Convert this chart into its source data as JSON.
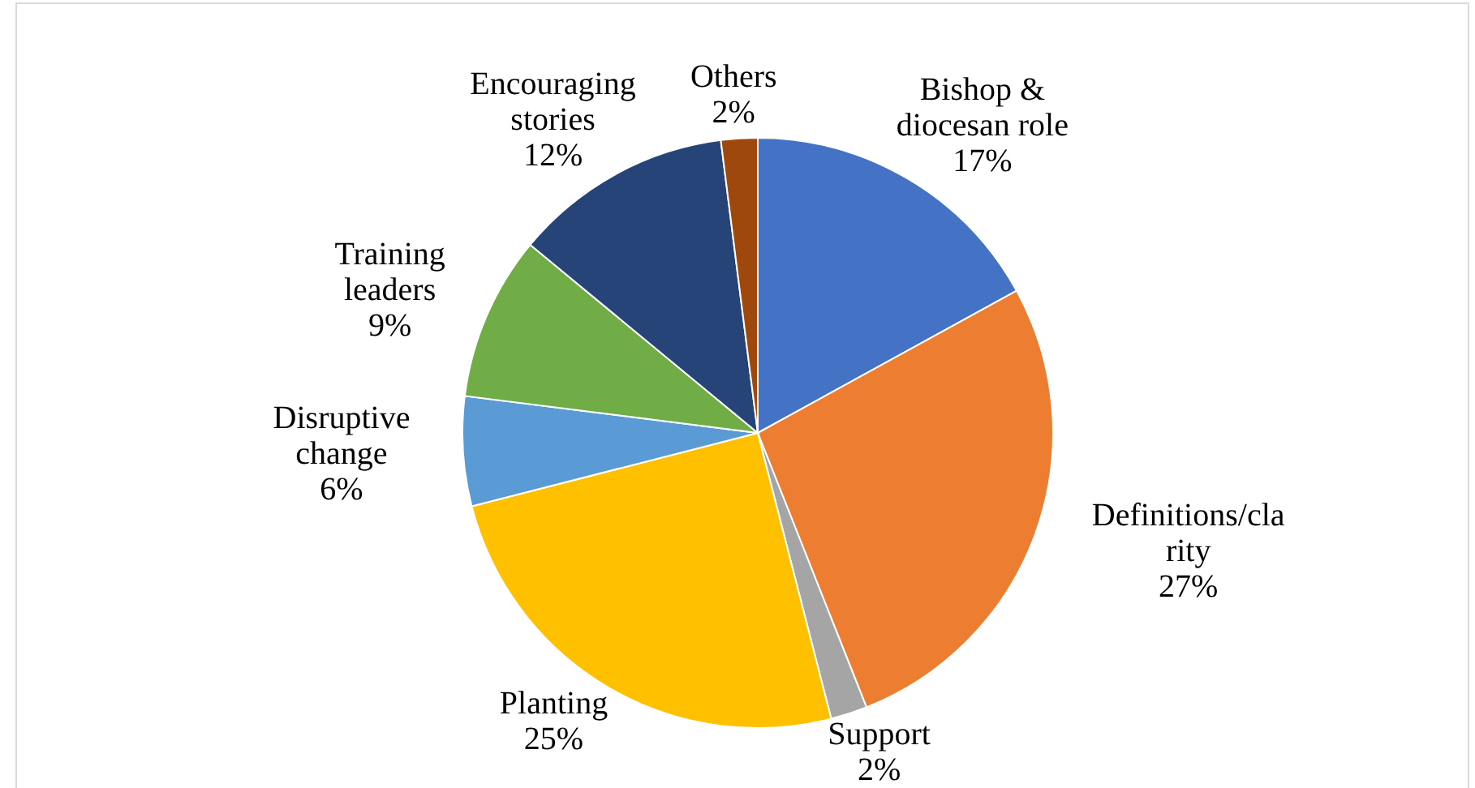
{
  "chart_data": {
    "type": "pie",
    "categories": [
      "Bishop &\ndiocesan role",
      "Definitions/cla\nrity",
      "Support",
      "Planting",
      "Disruptive\nchange",
      "Training\nleaders",
      "Encouraging\nstories",
      "Others"
    ],
    "values": [
      17,
      27,
      2,
      25,
      6,
      9,
      12,
      2
    ],
    "colors": [
      "#4472c4",
      "#ed7d31",
      "#a5a5a5",
      "#ffc000",
      "#5b9bd5",
      "#70ad47",
      "#264478",
      "#9e480e"
    ],
    "value_labels": [
      "17%",
      "27%",
      "2%",
      "25%",
      "6%",
      "9%",
      "12%",
      "2%"
    ]
  }
}
